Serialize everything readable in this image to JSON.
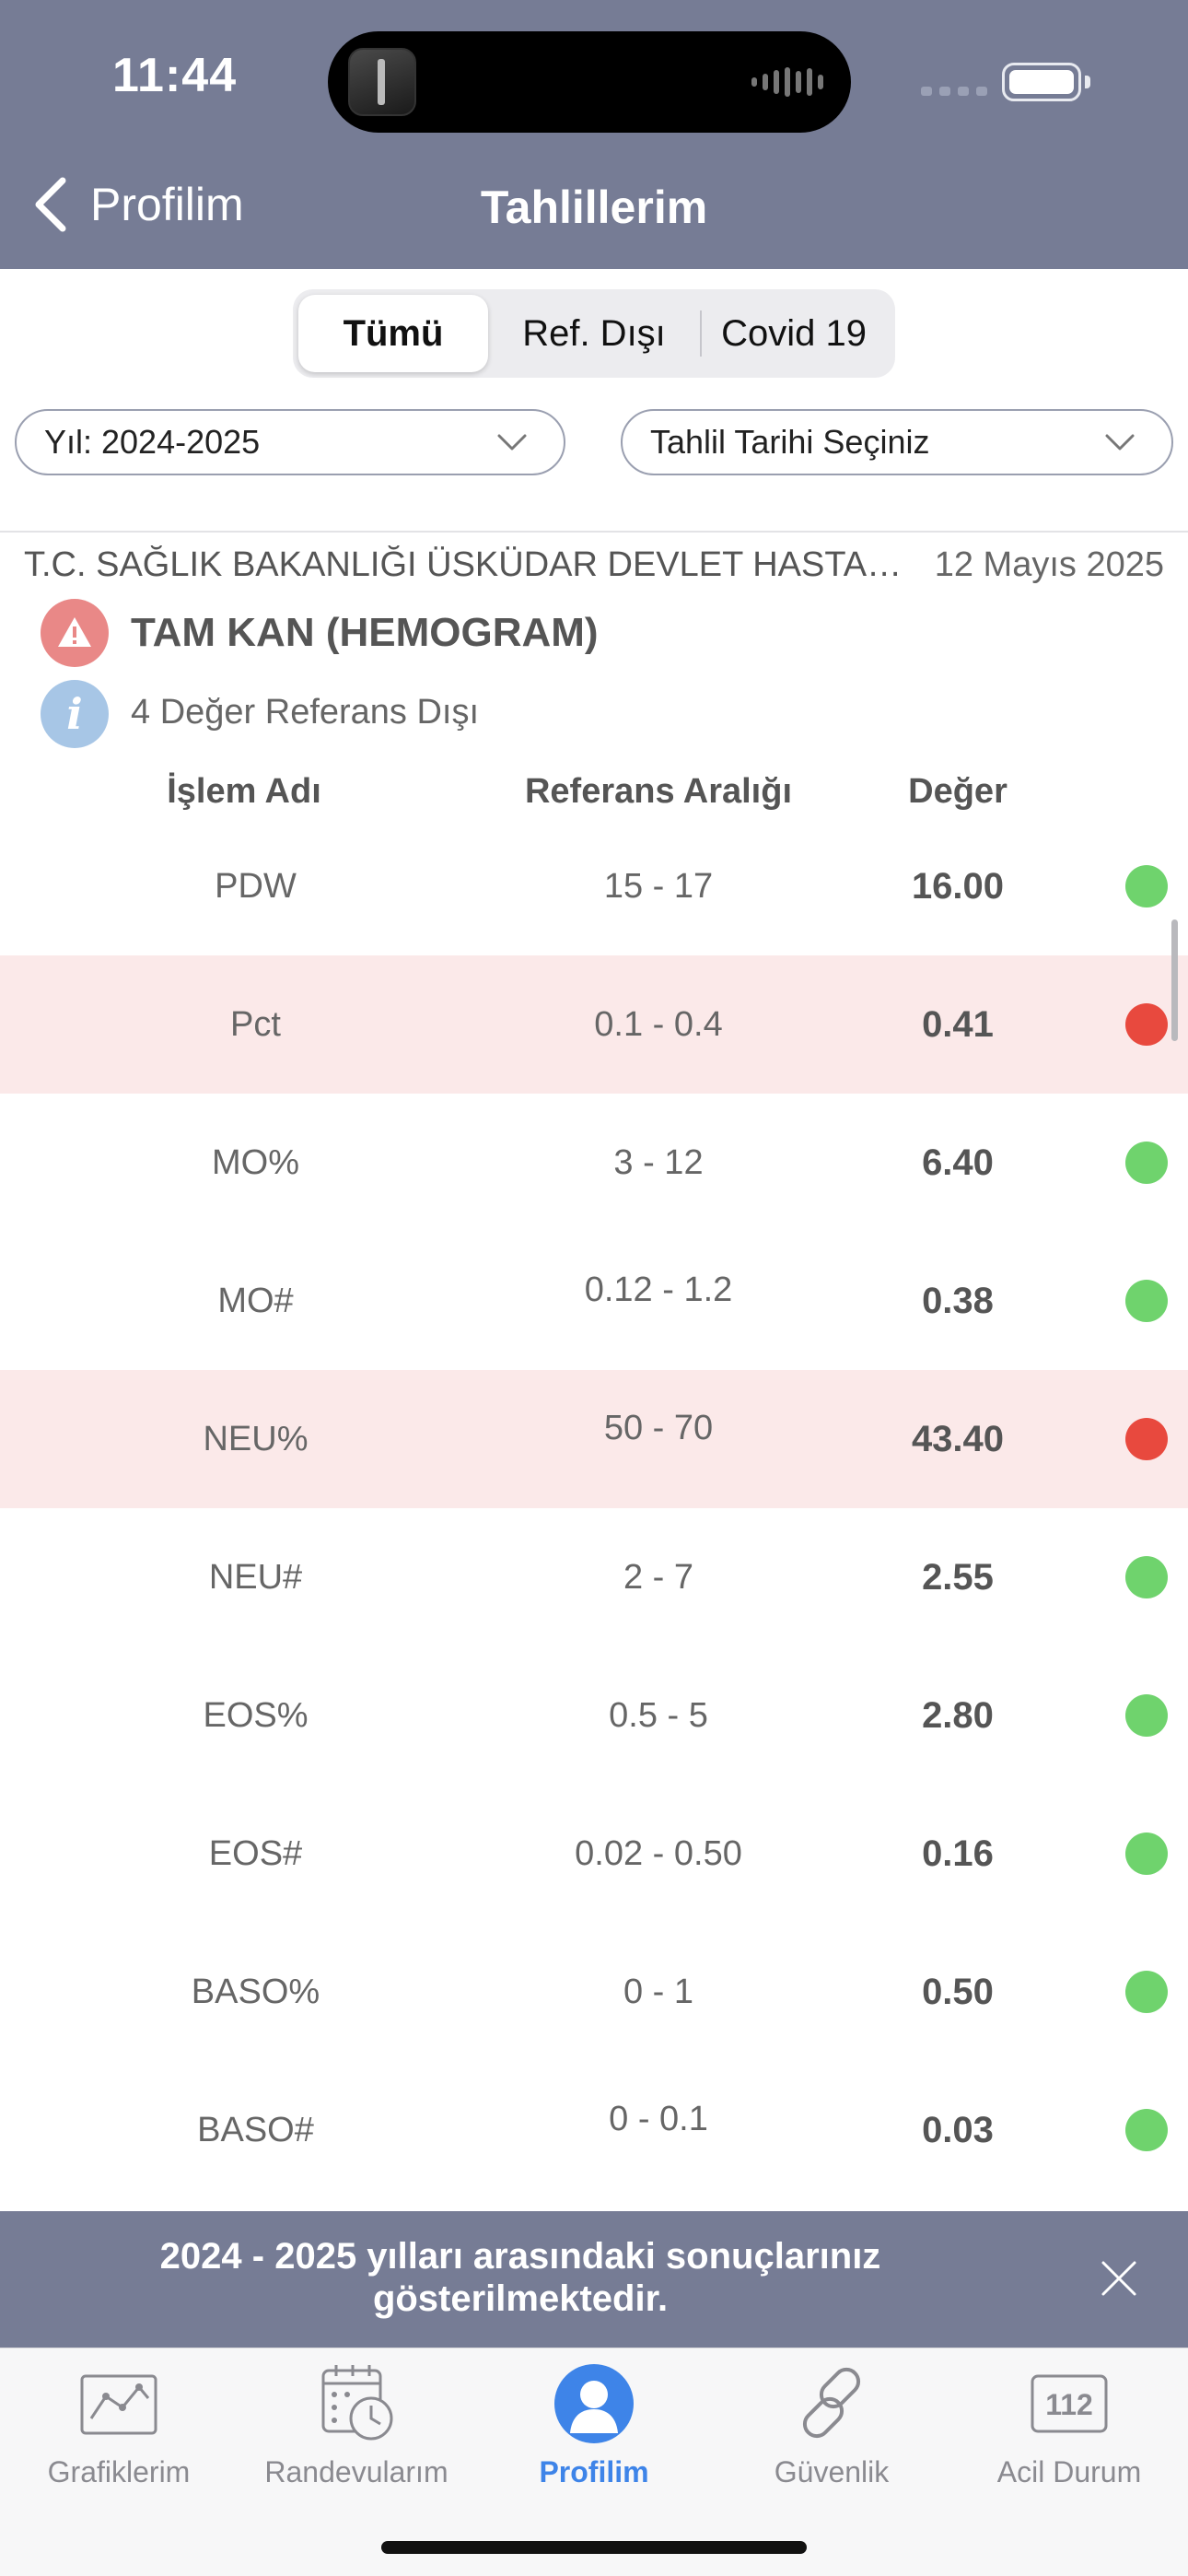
{
  "status_bar": {
    "time": "11:44"
  },
  "nav": {
    "back_label": "Profilim",
    "title": "Tahlillerim"
  },
  "segments": [
    {
      "label": "Tümü",
      "active": true
    },
    {
      "label": "Ref. Dışı",
      "active": false
    },
    {
      "label": "Covid 19",
      "active": false
    }
  ],
  "filters": {
    "year": "Yıl: 2024-2025",
    "date": "Tahlil Tarihi Seçiniz"
  },
  "result": {
    "hospital": "T.C. SAĞLIK BAKANLIĞI ÜSKÜDAR DEVLET HASTANESİ",
    "date": "12 Mayıs 2025",
    "test_name": "TAM KAN (HEMOGRAM)",
    "out_of_range_note": "4 Değer Referans Dışı"
  },
  "table": {
    "headers": {
      "name": "İşlem Adı",
      "reference": "Referans Aralığı",
      "value": "Değer"
    },
    "rows": [
      {
        "name": "PDW",
        "reference": "15 - 17",
        "value": "16.00",
        "status": "normal"
      },
      {
        "name": "Pct",
        "reference": "0.1 - 0.4",
        "value": "0.41",
        "status": "out"
      },
      {
        "name": "MO%",
        "reference": "3 - 12",
        "value": "6.40",
        "status": "normal"
      },
      {
        "name": "MO#",
        "reference": "0.12 - 1.2",
        "value": "0.38",
        "status": "normal"
      },
      {
        "name": "NEU%",
        "reference": "50 - 70",
        "value": "43.40",
        "status": "out"
      },
      {
        "name": "NEU#",
        "reference": "2 - 7",
        "value": "2.55",
        "status": "normal"
      },
      {
        "name": "EOS%",
        "reference": "0.5 - 5",
        "value": "2.80",
        "status": "normal"
      },
      {
        "name": "EOS#",
        "reference": "0.02 - 0.50",
        "value": "0.16",
        "status": "normal"
      },
      {
        "name": "BASO%",
        "reference": "0 - 1",
        "value": "0.50",
        "status": "normal"
      },
      {
        "name": "BASO#",
        "reference": "0 - 0.1",
        "value": "0.03",
        "status": "normal"
      }
    ]
  },
  "banner": {
    "text": "2024 - 2025 yılları arasındaki sonuçlarınız gösterilmektedir."
  },
  "tabbar": [
    {
      "label": "Grafiklerim",
      "icon": "chart-icon",
      "active": false
    },
    {
      "label": "Randevularım",
      "icon": "calendar-clock-icon",
      "active": false
    },
    {
      "label": "Profilim",
      "icon": "profile-icon",
      "active": true
    },
    {
      "label": "Güvenlik",
      "icon": "link-icon",
      "active": false
    },
    {
      "label": "Acil Durum",
      "icon": "emergency-112-icon",
      "active": false,
      "badge_text": "112"
    }
  ],
  "colors": {
    "header_bg": "#767c95",
    "normal_dot": "#6fd36d",
    "out_dot": "#e8493e",
    "out_row_bg": "#fbe9e9",
    "active_tab": "#3e84e8"
  }
}
